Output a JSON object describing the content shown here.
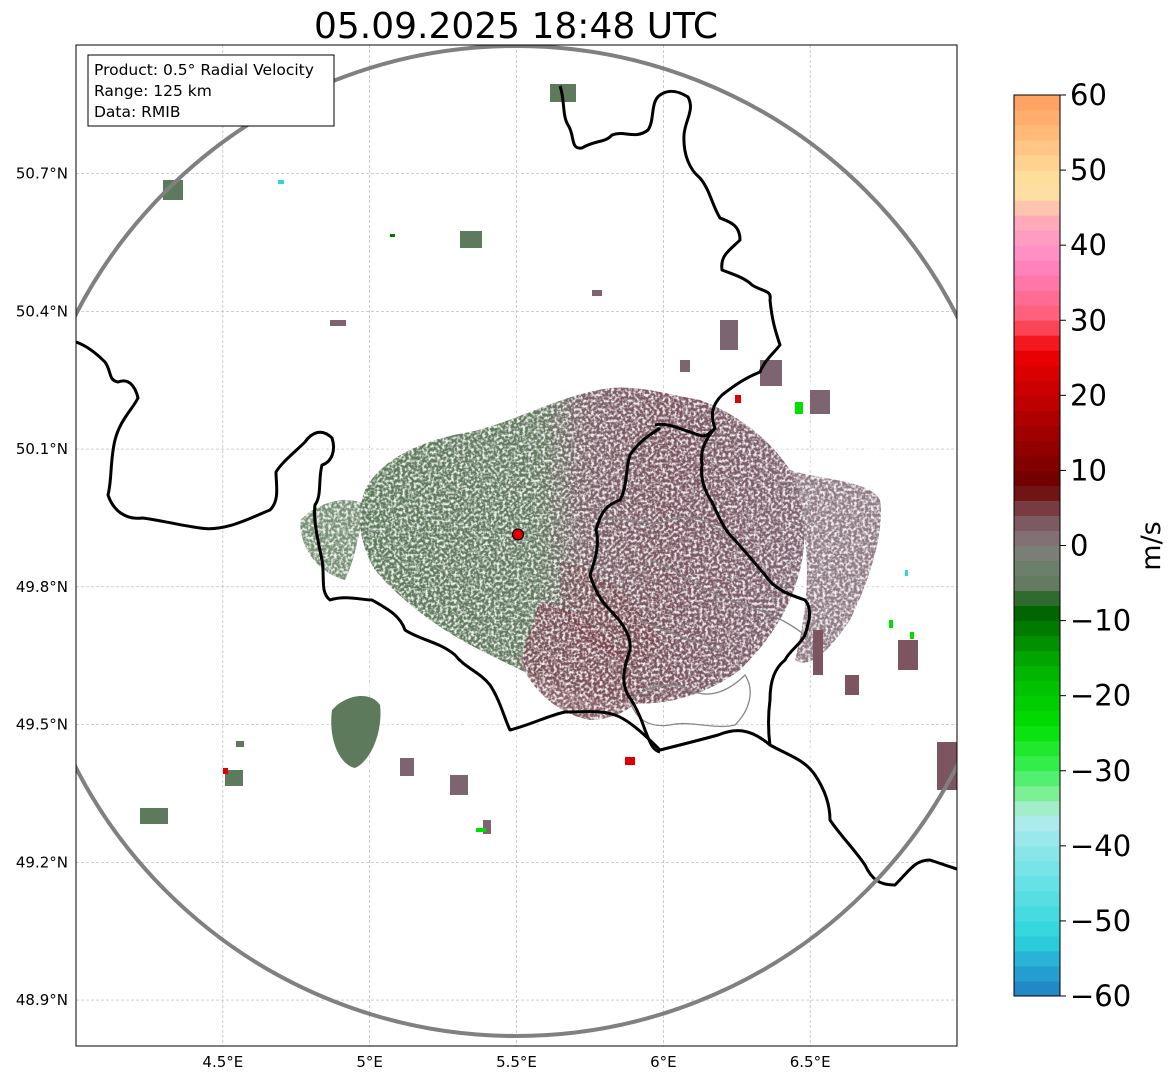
{
  "title": "05.09.2025 18:48 UTC",
  "info_box": {
    "product": "Product: 0.5° Radial Velocity",
    "range": "Range: 125 km",
    "data": "Data: RMIB"
  },
  "map": {
    "lon_range": [
      4.0,
      7.0
    ],
    "lat_range": [
      48.8,
      50.98
    ],
    "grid": true,
    "x_ticks": [
      {
        "value": 4.5,
        "label": "4.5°E"
      },
      {
        "value": 5.0,
        "label": "5°E"
      },
      {
        "value": 5.5,
        "label": "5.5°E"
      },
      {
        "value": 6.0,
        "label": "6°E"
      },
      {
        "value": 6.5,
        "label": "6.5°E"
      }
    ],
    "y_ticks": [
      {
        "value": 48.9,
        "label": "48.9°N"
      },
      {
        "value": 49.2,
        "label": "49.2°N"
      },
      {
        "value": 49.5,
        "label": "49.5°N"
      },
      {
        "value": 49.8,
        "label": "49.8°N"
      },
      {
        "value": 50.1,
        "label": "50.1°N"
      },
      {
        "value": 50.4,
        "label": "50.4°N"
      },
      {
        "value": 50.7,
        "label": "50.7°N"
      }
    ],
    "radar_site": {
      "lon": 5.505,
      "lat": 49.914
    },
    "range_ring_color": "#808080",
    "border_color": "#000000"
  },
  "colorbar": {
    "label": "m/s",
    "min": -60,
    "max": 60,
    "ticks": [
      {
        "value": 60,
        "label": "60"
      },
      {
        "value": 50,
        "label": "50"
      },
      {
        "value": 40,
        "label": "40"
      },
      {
        "value": 30,
        "label": "30"
      },
      {
        "value": 20,
        "label": "20"
      },
      {
        "value": 10,
        "label": "10"
      },
      {
        "value": 0,
        "label": "0"
      },
      {
        "value": -10,
        "label": "−10"
      },
      {
        "value": -20,
        "label": "−20"
      },
      {
        "value": -30,
        "label": "−30"
      },
      {
        "value": -40,
        "label": "−40"
      },
      {
        "value": -50,
        "label": "−50"
      },
      {
        "value": -60,
        "label": "−60"
      }
    ],
    "colors": {
      "approaching_light_blue": "#b4ebee",
      "approaching_cyan": "#2ed6dd",
      "approaching_blue": "#1f7fc0",
      "approaching_green": "#00d800",
      "approaching_dark_green": "#005b00",
      "near_zero_green": "#5e7a5c",
      "near_zero_gray": "#847b7d",
      "receding_mauve": "#7a4e57",
      "receding_dark_red": "#6d0000",
      "receding_red": "#f00000",
      "receding_pink": "#ff88c7",
      "receding_peach": "#ffd8a8",
      "receding_orange": "#ff9c5c"
    }
  }
}
